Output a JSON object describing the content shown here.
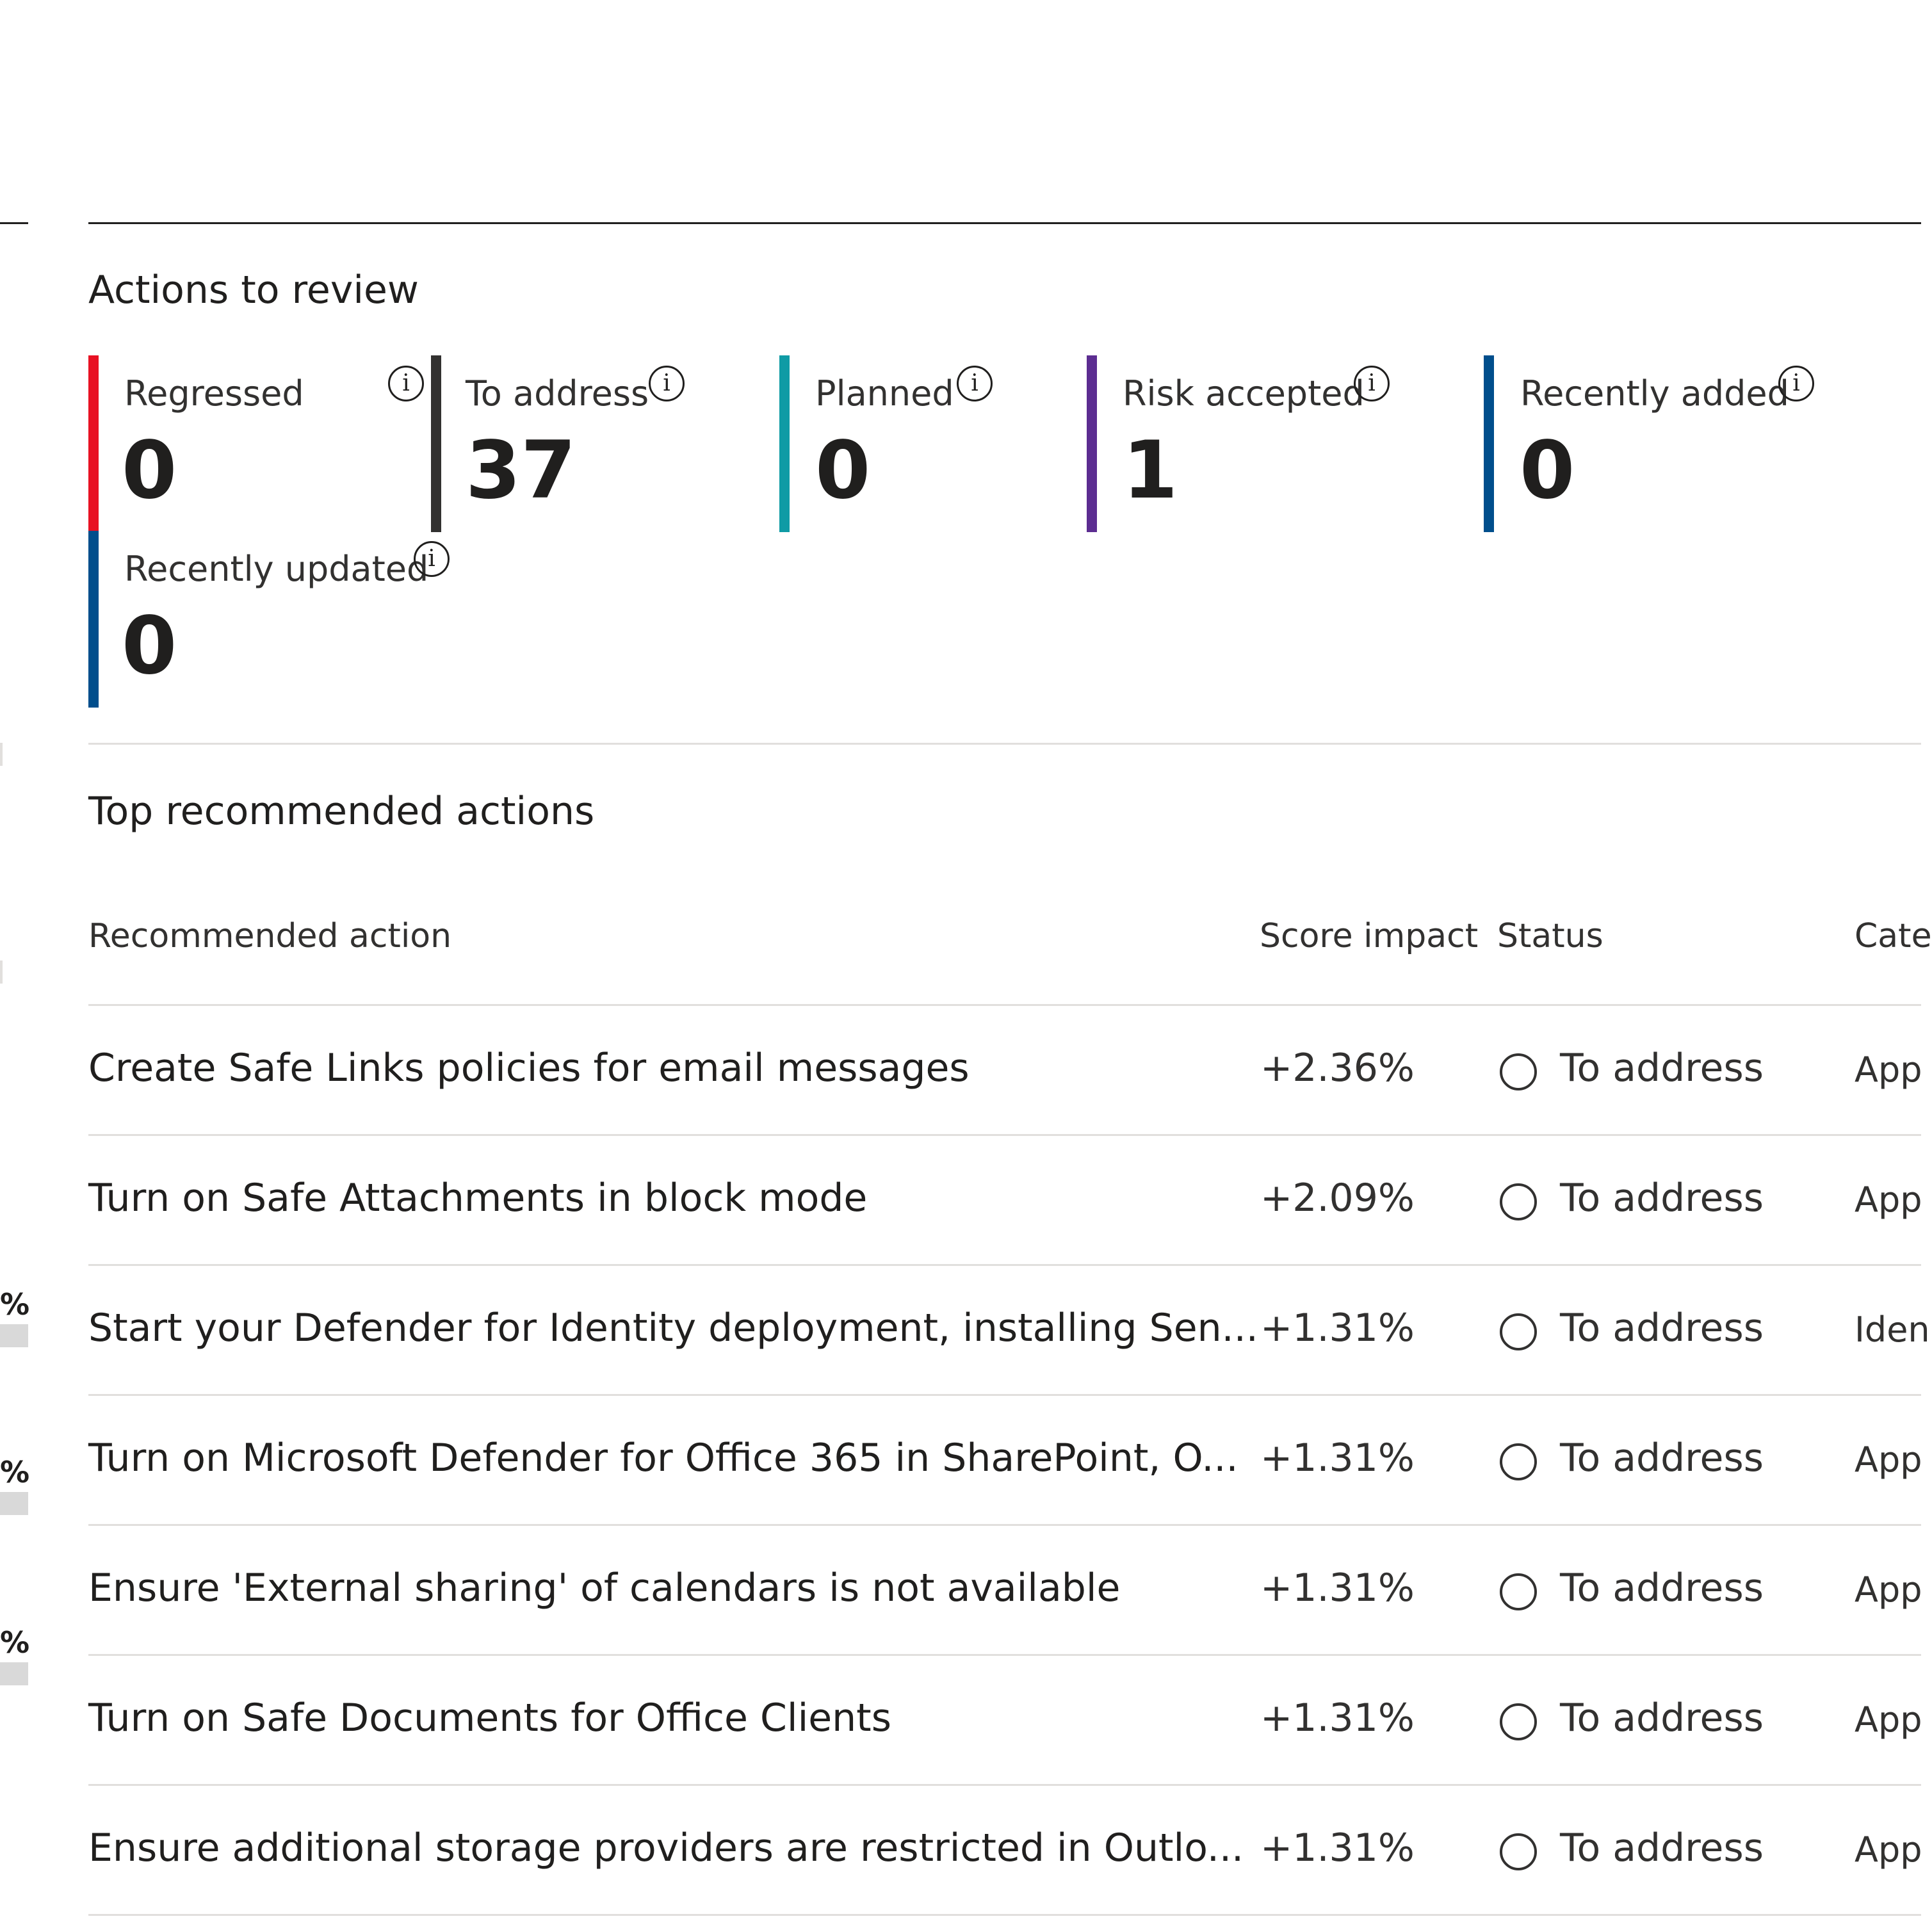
{
  "actions_to_review": {
    "title": "Actions to review",
    "metrics": [
      {
        "label": "Regressed",
        "value": "0",
        "color": "#e81123"
      },
      {
        "label": "To address",
        "value": "37",
        "color": "#323130"
      },
      {
        "label": "Planned",
        "value": "0",
        "color": "#0f9ba5"
      },
      {
        "label": "Risk accepted",
        "value": "1",
        "color": "#5c2d91"
      },
      {
        "label": "Recently added",
        "value": "0",
        "color": "#004e8c"
      },
      {
        "label": "Recently updated",
        "value": "0",
        "color": "#004e8c"
      }
    ]
  },
  "left_panel": {
    "fragments": [
      "%",
      "%",
      "%"
    ]
  },
  "top_actions": {
    "title": "Top recommended actions",
    "columns": [
      "Recommended action",
      "Score impact",
      "Status",
      "Cate"
    ],
    "rows": [
      {
        "action": "Create Safe Links policies for email messages",
        "score": "+2.36%",
        "status": "To address",
        "category": "App"
      },
      {
        "action": "Turn on Safe Attachments in block mode",
        "score": "+2.09%",
        "status": "To address",
        "category": "App"
      },
      {
        "action": "Start your Defender for Identity deployment, installing Sen...",
        "score": "+1.31%",
        "status": "To address",
        "category": "Iden"
      },
      {
        "action": "Turn on Microsoft Defender for Office 365 in SharePoint, O...",
        "score": "+1.31%",
        "status": "To address",
        "category": "App"
      },
      {
        "action": "Ensure 'External sharing' of calendars is not available",
        "score": "+1.31%",
        "status": "To address",
        "category": "App"
      },
      {
        "action": "Turn on Safe Documents for Office Clients",
        "score": "+1.31%",
        "status": "To address",
        "category": "App"
      },
      {
        "action": "Ensure additional storage providers are restricted in Outlo...",
        "score": "+1.31%",
        "status": "To address",
        "category": "App"
      }
    ]
  }
}
